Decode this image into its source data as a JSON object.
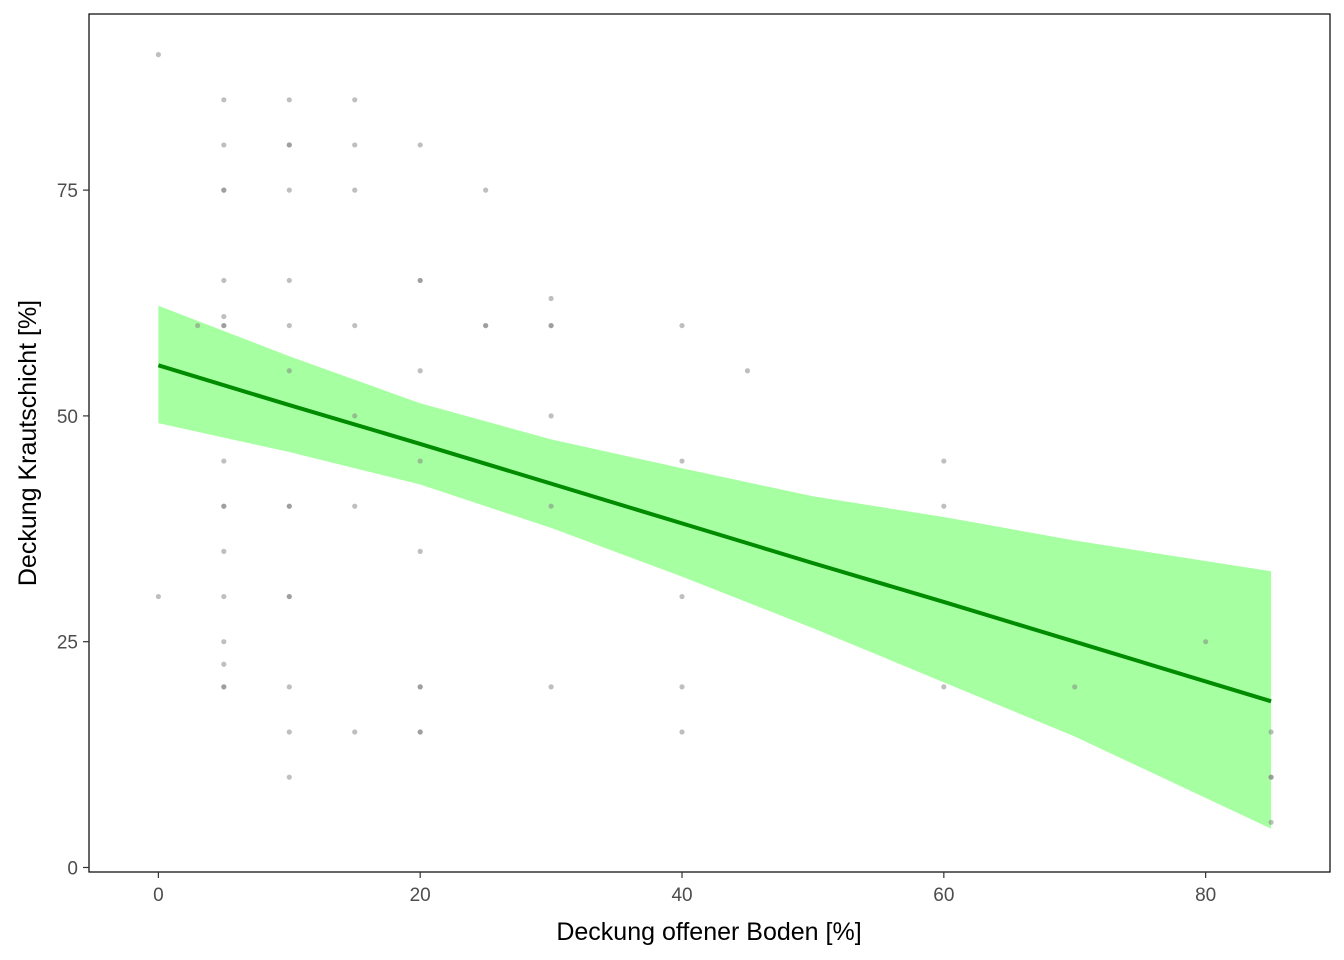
{
  "chart_data": {
    "type": "scatter",
    "xlabel": "Deckung offener Boden [%]",
    "ylabel": "Deckung Krautschicht [%]",
    "xlim": [
      -5.3,
      89.5
    ],
    "ylim": [
      -0.5,
      94.5
    ],
    "x_ticks": [
      0,
      20,
      40,
      60,
      80
    ],
    "y_ticks": [
      0,
      25,
      50,
      75
    ],
    "x_tick_labels": [
      "0",
      "20",
      "40",
      "60",
      "80"
    ],
    "y_tick_labels": [
      "0",
      "25",
      "50",
      "75"
    ],
    "grid": false,
    "legend": "none",
    "points": [
      {
        "x": 0,
        "y": 90
      },
      {
        "x": 0,
        "y": 30
      },
      {
        "x": 3,
        "y": 60
      },
      {
        "x": 5,
        "y": 85
      },
      {
        "x": 5,
        "y": 80
      },
      {
        "x": 5,
        "y": 75
      },
      {
        "x": 5,
        "y": 75
      },
      {
        "x": 5,
        "y": 65
      },
      {
        "x": 5,
        "y": 61
      },
      {
        "x": 5,
        "y": 60
      },
      {
        "x": 5,
        "y": 60
      },
      {
        "x": 5,
        "y": 45
      },
      {
        "x": 5,
        "y": 40
      },
      {
        "x": 5,
        "y": 40
      },
      {
        "x": 5,
        "y": 35
      },
      {
        "x": 5,
        "y": 30
      },
      {
        "x": 5,
        "y": 25
      },
      {
        "x": 5,
        "y": 22.5
      },
      {
        "x": 5,
        "y": 20
      },
      {
        "x": 5,
        "y": 20
      },
      {
        "x": 10,
        "y": 85
      },
      {
        "x": 10,
        "y": 80
      },
      {
        "x": 10,
        "y": 80
      },
      {
        "x": 10,
        "y": 75
      },
      {
        "x": 10,
        "y": 65
      },
      {
        "x": 10,
        "y": 60
      },
      {
        "x": 10,
        "y": 55
      },
      {
        "x": 10,
        "y": 40
      },
      {
        "x": 10,
        "y": 40
      },
      {
        "x": 10,
        "y": 30
      },
      {
        "x": 10,
        "y": 30
      },
      {
        "x": 10,
        "y": 20
      },
      {
        "x": 10,
        "y": 15
      },
      {
        "x": 10,
        "y": 10
      },
      {
        "x": 15,
        "y": 85
      },
      {
        "x": 15,
        "y": 80
      },
      {
        "x": 15,
        "y": 75
      },
      {
        "x": 15,
        "y": 60
      },
      {
        "x": 15,
        "y": 50
      },
      {
        "x": 15,
        "y": 40
      },
      {
        "x": 15,
        "y": 15
      },
      {
        "x": 20,
        "y": 80
      },
      {
        "x": 20,
        "y": 65
      },
      {
        "x": 20,
        "y": 65
      },
      {
        "x": 20,
        "y": 55
      },
      {
        "x": 20,
        "y": 45
      },
      {
        "x": 20,
        "y": 35
      },
      {
        "x": 20,
        "y": 20
      },
      {
        "x": 20,
        "y": 20
      },
      {
        "x": 20,
        "y": 15
      },
      {
        "x": 20,
        "y": 15
      },
      {
        "x": 25,
        "y": 75
      },
      {
        "x": 25,
        "y": 60
      },
      {
        "x": 25,
        "y": 60
      },
      {
        "x": 30,
        "y": 63
      },
      {
        "x": 30,
        "y": 60
      },
      {
        "x": 30,
        "y": 60
      },
      {
        "x": 30,
        "y": 50
      },
      {
        "x": 30,
        "y": 40
      },
      {
        "x": 30,
        "y": 20
      },
      {
        "x": 40,
        "y": 60
      },
      {
        "x": 40,
        "y": 45
      },
      {
        "x": 40,
        "y": 30
      },
      {
        "x": 40,
        "y": 20
      },
      {
        "x": 40,
        "y": 15
      },
      {
        "x": 45,
        "y": 55
      },
      {
        "x": 60,
        "y": 45
      },
      {
        "x": 60,
        "y": 40
      },
      {
        "x": 60,
        "y": 20
      },
      {
        "x": 70,
        "y": 20
      },
      {
        "x": 80,
        "y": 25
      },
      {
        "x": 85,
        "y": 15
      },
      {
        "x": 85,
        "y": 10
      },
      {
        "x": 85,
        "y": 10
      },
      {
        "x": 85,
        "y": 5
      }
    ],
    "point_color": "#808080",
    "fit": {
      "x": [
        0,
        10,
        20,
        30,
        40,
        50,
        60,
        70,
        85
      ],
      "y": [
        55.6,
        51.2,
        46.9,
        42.5,
        38.1,
        33.7,
        29.4,
        25.0,
        18.4
      ],
      "lower": [
        49.2,
        46.0,
        42.4,
        37.6,
        32.2,
        26.5,
        20.5,
        14.5,
        4.3
      ],
      "upper": [
        62.2,
        56.6,
        51.4,
        47.4,
        44.2,
        41.1,
        38.8,
        36.2,
        32.8
      ],
      "line_color": "#008B00",
      "band_color": "#A6FFA0"
    }
  }
}
